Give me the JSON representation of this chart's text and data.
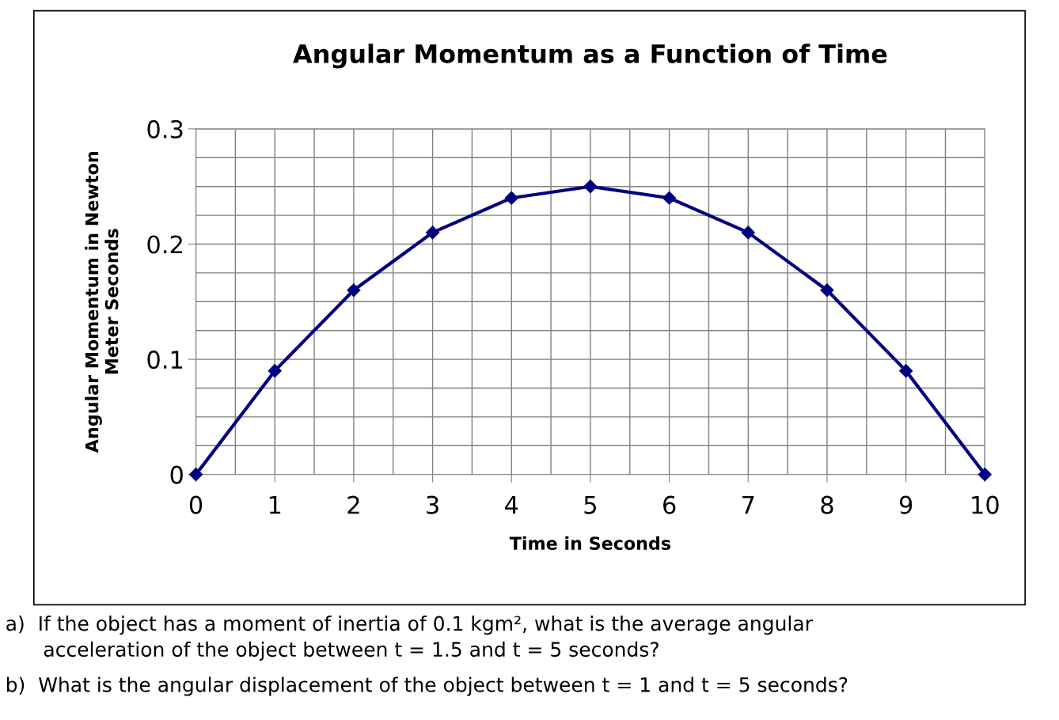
{
  "chart_data": {
    "type": "line",
    "title": "Angular Momentum as a Function of Time",
    "xlabel": "Time in Seconds",
    "ylabel": "Angular Momentum in Newton\nMeter Seconds",
    "x": [
      0,
      1,
      2,
      3,
      4,
      5,
      6,
      7,
      8,
      9,
      10
    ],
    "series": [
      {
        "color": "#000080",
        "values": [
          0,
          0.09,
          0.16,
          0.21,
          0.24,
          0.25,
          0.24,
          0.21,
          0.16,
          0.09,
          0
        ]
      }
    ],
    "xlim": [
      0,
      10
    ],
    "ylim": [
      0,
      0.3
    ],
    "xticks": [
      0,
      {
        "value": 0.5,
        "label": null
      },
      1,
      {
        "value": 1.5,
        "label": null
      },
      2,
      {
        "value": 2.5,
        "label": null
      },
      3,
      {
        "value": 3.5,
        "label": null
      },
      4,
      {
        "value": 4.5,
        "label": null
      },
      5,
      {
        "value": 5.5,
        "label": null
      },
      6,
      {
        "value": 6.5,
        "label": null
      },
      7,
      {
        "value": 7.5,
        "label": null
      },
      8,
      {
        "value": 8.5,
        "label": null
      },
      9,
      {
        "value": 9.5,
        "label": null
      },
      10
    ],
    "yticks": [
      0,
      {
        "value": 0.025,
        "label": null
      },
      {
        "value": 0.05,
        "label": null
      },
      {
        "value": 0.075,
        "label": null
      },
      0.1,
      {
        "value": 0.125,
        "label": null
      },
      {
        "value": 0.15,
        "label": null
      },
      {
        "value": 0.175,
        "label": null
      },
      0.2,
      {
        "value": 0.225,
        "label": null
      },
      {
        "value": 0.25,
        "label": null
      },
      {
        "value": 0.275,
        "label": null
      },
      0.3
    ],
    "grid": true,
    "marker": "diamond",
    "line_style": "solid",
    "annotations": [
      "a)  If the object has a moment of inertia of 0.1 kgm², what is the average angular\n      acceleration of the object between t = 1.5 and t = 5 seconds?",
      "b)  What is the angular displacement of the object between t = 1 and t = 5 seconds?"
    ]
  }
}
